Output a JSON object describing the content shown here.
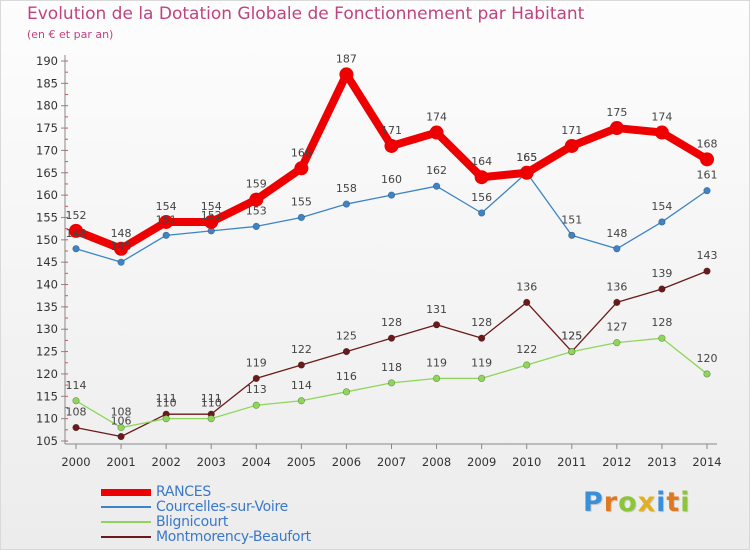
{
  "header": {
    "title": "Evolution de la Dotation Globale de Fonctionnement par Habitant",
    "subtitle": "(en € et par an)"
  },
  "chart_data": {
    "type": "line",
    "title": "Evolution de la Dotation Globale de Fonctionnement par Habitant",
    "subtitle": "(en € et par an)",
    "xlabel": "",
    "ylabel": "",
    "categories": [
      "2000",
      "2001",
      "2002",
      "2003",
      "2004",
      "2005",
      "2006",
      "2007",
      "2008",
      "2009",
      "2010",
      "2011",
      "2012",
      "2013",
      "2014"
    ],
    "ylim": [
      105,
      190
    ],
    "yticks": [
      105,
      110,
      115,
      120,
      125,
      130,
      135,
      140,
      145,
      150,
      155,
      160,
      165,
      170,
      175,
      180,
      185,
      190
    ],
    "grid": false,
    "legend_position": "bottom-left",
    "series": [
      {
        "name": "RANCES",
        "color": "#ee0000",
        "values": [
          152,
          148,
          154,
          154,
          159,
          166,
          187,
          171,
          174,
          164,
          165,
          171,
          175,
          174,
          168
        ]
      },
      {
        "name": "Courcelles-sur-Voire",
        "color": "#3d84c6",
        "values": [
          148,
          145,
          151,
          152,
          153,
          155,
          158,
          160,
          162,
          156,
          165,
          151,
          148,
          154,
          161
        ]
      },
      {
        "name": "Blignicourt",
        "color": "#8dd65a",
        "values": [
          114,
          108,
          110,
          110,
          113,
          114,
          116,
          118,
          119,
          119,
          122,
          125,
          127,
          128,
          120
        ]
      },
      {
        "name": "Montmorency-Beaufort",
        "color": "#6b1a1a",
        "values": [
          108,
          106,
          111,
          111,
          119,
          122,
          125,
          128,
          131,
          128,
          136,
          125,
          136,
          139,
          143
        ]
      }
    ],
    "data_labels": {
      "RANCES": [
        "152",
        "148",
        "154",
        "154",
        "159",
        "166",
        "187",
        "171",
        "174",
        "164",
        "165",
        "171",
        "175",
        "174",
        "168"
      ],
      "Courcelles-sur-Voire": [
        "148",
        "145",
        "151",
        "152",
        "153",
        "155",
        "158",
        "160",
        "162",
        "156",
        "165",
        "151",
        "148",
        "154",
        "161"
      ],
      "Blignicourt": [
        "114",
        "108",
        "110",
        "110",
        "113",
        "114",
        "116",
        "118",
        "119",
        "119",
        "122",
        "125",
        "127",
        "128",
        "120"
      ],
      "Montmorency-Beaufort": [
        "108",
        "106",
        "111",
        "111",
        "119",
        "122",
        "125",
        "128",
        "131",
        "128",
        "136",
        "125",
        "136",
        "139",
        "143"
      ]
    }
  },
  "legend": [
    {
      "label": "RANCES",
      "color": "#ee0000",
      "weight": 7
    },
    {
      "label": "Courcelles-sur-Voire",
      "color": "#3d84c6",
      "weight": 1.5
    },
    {
      "label": "Blignicourt",
      "color": "#8dd65a",
      "weight": 1.5
    },
    {
      "label": "Montmorency-Beaufort",
      "color": "#6b1a1a",
      "weight": 1.5
    }
  ],
  "logo": {
    "letters": [
      "P",
      "r",
      "o",
      "x",
      "i",
      "t",
      "i"
    ],
    "colors": [
      "#3a8fd8",
      "#e07820",
      "#8cc43c",
      "#e0b020",
      "#3a8fd8",
      "#e07820",
      "#8cc43c"
    ]
  }
}
